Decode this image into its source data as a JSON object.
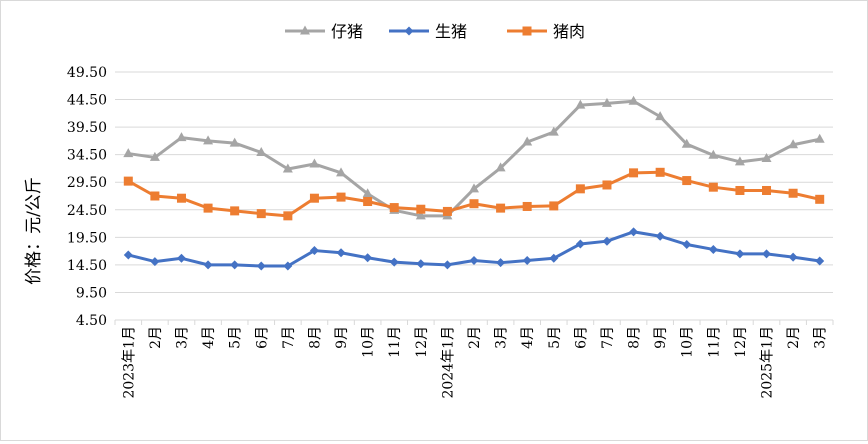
{
  "chart_data": {
    "type": "line",
    "title": "",
    "xlabel": "",
    "ylabel": "价格：元/公斤",
    "ylim": [
      4.5,
      49.5
    ],
    "yticks": [
      4.5,
      9.5,
      14.5,
      19.5,
      24.5,
      29.5,
      34.5,
      39.5,
      44.5,
      49.5
    ],
    "grid": true,
    "legend_position": "top",
    "categories": [
      "2023年1月",
      "2月",
      "3月",
      "4月",
      "5月",
      "6月",
      "7月",
      "8月",
      "9月",
      "10月",
      "11月",
      "12月",
      "2024年1月",
      "2月",
      "3月",
      "4月",
      "5月",
      "6月",
      "7月",
      "8月",
      "9月",
      "10月",
      "11月",
      "12月",
      "2025年1月",
      "2月",
      "3月"
    ],
    "series": [
      {
        "name": "仔猪",
        "color": "#a5a5a5",
        "marker": "triangle",
        "values": [
          34.7,
          34.0,
          37.6,
          37.0,
          36.6,
          34.9,
          31.9,
          32.8,
          31.2,
          27.4,
          24.4,
          23.4,
          23.4,
          28.3,
          32.1,
          36.8,
          38.6,
          43.5,
          43.8,
          44.2,
          41.4,
          36.4,
          34.4,
          33.2,
          33.8,
          36.3,
          37.3
        ]
      },
      {
        "name": "生猪",
        "color": "#4472c4",
        "marker": "diamond",
        "values": [
          16.3,
          15.1,
          15.7,
          14.5,
          14.5,
          14.3,
          14.3,
          17.1,
          16.7,
          15.8,
          15.0,
          14.7,
          14.5,
          15.3,
          14.9,
          15.3,
          15.7,
          18.3,
          18.8,
          20.5,
          19.7,
          18.2,
          17.3,
          16.5,
          16.5,
          15.9,
          15.2
        ]
      },
      {
        "name": "猪肉",
        "color": "#ed7d31",
        "marker": "square",
        "values": [
          29.7,
          27.0,
          26.6,
          24.8,
          24.3,
          23.8,
          23.4,
          26.6,
          26.8,
          26.0,
          24.9,
          24.6,
          24.2,
          25.6,
          24.8,
          25.1,
          25.2,
          28.3,
          29.0,
          31.2,
          31.3,
          29.8,
          28.6,
          28.0,
          28.0,
          27.5,
          26.4
        ]
      }
    ]
  }
}
